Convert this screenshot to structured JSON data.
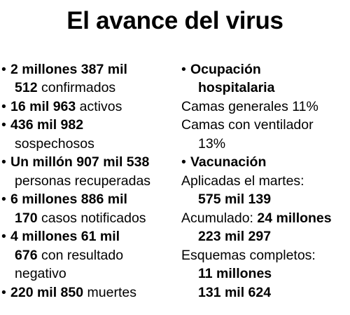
{
  "title": "El avance del virus",
  "bullet": "•",
  "left": {
    "confirmados": {
      "num_a": "2 millones 387 mil",
      "num_b": "512",
      "label": "confirmados"
    },
    "activos": {
      "num": "16 mil 963",
      "label": "activos"
    },
    "sospechosos": {
      "num": "436 mil 982",
      "label": "sospechosos"
    },
    "recuperadas": {
      "num": "Un millón 907 mil 538",
      "label": "personas recuperadas"
    },
    "notificados": {
      "num_a": "6 millones 886 mil",
      "num_b": "170",
      "label": "casos notificados"
    },
    "negativos": {
      "num_a": "4 millones 61 mil",
      "num_b": "676",
      "label_a": "con resultado",
      "label_b": "negativo"
    },
    "muertes": {
      "num": "220 mil 850",
      "label": "muertes"
    }
  },
  "right": {
    "ocupacion": {
      "heading_a": "Ocupación",
      "heading_b": "hospitalaria",
      "camas_generales": "Camas generales 11%",
      "camas_ventilador": "Camas con ventilador",
      "camas_ventilador_pct": "13%"
    },
    "vacunacion": {
      "heading": "Vacunación",
      "aplicadas_label": "Aplicadas el martes:",
      "aplicadas_num": "575 mil 139",
      "acumulado_label": "Acumulado:",
      "acumulado_num_a": "24 millones",
      "acumulado_num_b": "223 mil 297",
      "esquemas_label": "Esquemas completos:",
      "esquemas_num_a": "11 millones",
      "esquemas_num_b": "131 mil 624"
    }
  }
}
